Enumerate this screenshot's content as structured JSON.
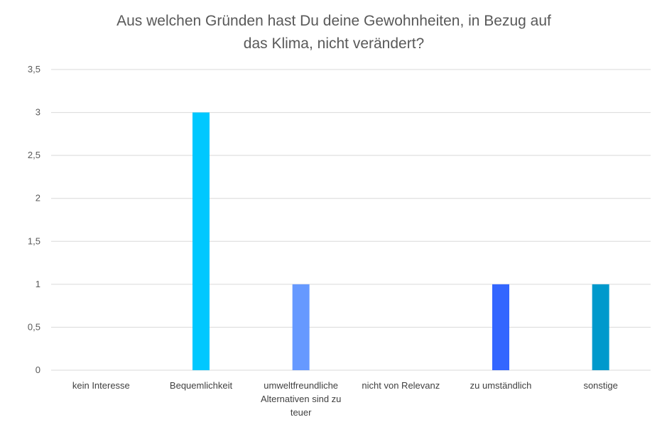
{
  "chart_data": {
    "type": "bar",
    "title_lines": [
      "Aus welchen Gründen hast Du deine Gewohnheiten, in Bezug auf",
      "das Klima, nicht verändert?"
    ],
    "categories": [
      [
        "kein Interesse"
      ],
      [
        "Bequemlichkeit"
      ],
      [
        "umweltfreundliche",
        "Alternativen sind zu",
        "teuer"
      ],
      [
        "nicht von Relevanz"
      ],
      [
        "zu umständlich"
      ],
      [
        "sonstige"
      ]
    ],
    "values": [
      0,
      3,
      1,
      0,
      1,
      1
    ],
    "bar_colors": [
      "#00c8ff",
      "#00c8ff",
      "#6699ff",
      "#3366ff",
      "#3366ff",
      "#0099cc"
    ],
    "y_ticks": [
      "0",
      "0,5",
      "1",
      "1,5",
      "2",
      "2,5",
      "3",
      "3,5"
    ],
    "ylim": [
      0,
      3.5
    ],
    "grid": true,
    "gridline_color": "#d9d9d9"
  }
}
